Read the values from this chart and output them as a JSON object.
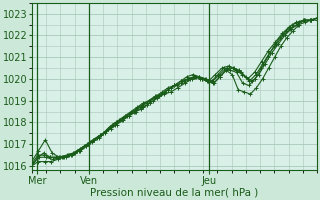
{
  "title": "",
  "xlabel": "Pression niveau de la mer( hPa )",
  "ylabel": "",
  "bg_color": "#cce8d8",
  "plot_bg_color": "#d8f0e8",
  "grid_color": "#a8c8b8",
  "line_color": "#1a5c1a",
  "ylim": [
    1015.8,
    1023.3
  ],
  "xlim": [
    0,
    100
  ],
  "x_ticks": [
    2,
    20,
    62
  ],
  "x_labels": [
    "Mer",
    "Ven",
    "Jeu"
  ],
  "vline_positions": [
    2,
    20,
    62
  ],
  "yticks": [
    1016,
    1017,
    1018,
    1019,
    1020,
    1021,
    1022,
    1023
  ],
  "series": [
    [
      1016.0,
      1016.4,
      1016.6,
      1016.4,
      1016.4,
      1016.4,
      1016.5,
      1016.6,
      1016.7,
      1016.9,
      1017.1,
      1017.3,
      1017.5,
      1017.7,
      1017.9,
      1018.1,
      1018.3,
      1018.5,
      1018.6,
      1018.8,
      1019.0,
      1019.2,
      1019.4,
      1019.6,
      1019.7,
      1019.9,
      1020.0,
      1020.1,
      1020.0,
      1019.9,
      1019.8,
      1020.1,
      1020.4,
      1020.2,
      1019.5,
      1019.4,
      1019.3,
      1019.6,
      1020.0,
      1020.5,
      1021.0,
      1021.5,
      1021.9,
      1022.2,
      1022.5,
      1022.6,
      1022.7,
      1022.7
    ],
    [
      1016.1,
      1016.5,
      1016.5,
      1016.4,
      1016.4,
      1016.4,
      1016.5,
      1016.6,
      1016.8,
      1017.0,
      1017.2,
      1017.4,
      1017.6,
      1017.9,
      1018.1,
      1018.3,
      1018.5,
      1018.7,
      1018.9,
      1019.0,
      1019.2,
      1019.4,
      1019.6,
      1019.7,
      1019.9,
      1020.1,
      1020.2,
      1020.1,
      1020.0,
      1019.9,
      1020.2,
      1020.5,
      1020.4,
      1020.3,
      1019.8,
      1019.7,
      1020.0,
      1020.5,
      1021.0,
      1021.5,
      1021.9,
      1022.2,
      1022.5,
      1022.6,
      1022.7,
      1022.7,
      1022.8
    ],
    [
      1016.0,
      1016.2,
      1016.2,
      1016.2,
      1016.3,
      1016.4,
      1016.5,
      1016.7,
      1016.9,
      1017.1,
      1017.3,
      1017.5,
      1017.8,
      1018.0,
      1018.2,
      1018.4,
      1018.6,
      1018.8,
      1019.0,
      1019.2,
      1019.3,
      1019.5,
      1019.7,
      1019.9,
      1020.0,
      1020.1,
      1020.0,
      1019.9,
      1019.8,
      1020.1,
      1020.4,
      1020.5,
      1020.4,
      1020.1,
      1019.9,
      1020.2,
      1020.7,
      1021.2,
      1021.6,
      1022.0,
      1022.3,
      1022.5,
      1022.7,
      1022.7,
      1022.8
    ],
    [
      1016.2,
      1016.7,
      1017.2,
      1016.6,
      1016.4,
      1016.4,
      1016.5,
      1016.7,
      1016.9,
      1017.2,
      1017.4,
      1017.6,
      1017.9,
      1018.1,
      1018.3,
      1018.5,
      1018.7,
      1018.9,
      1019.1,
      1019.3,
      1019.5,
      1019.7,
      1019.8,
      1020.0,
      1020.1,
      1020.0,
      1019.9,
      1020.2,
      1020.5,
      1020.6,
      1020.4,
      1020.2,
      1019.9,
      1020.2,
      1020.7,
      1021.2,
      1021.6,
      1022.0,
      1022.3,
      1022.5,
      1022.7,
      1022.7,
      1022.8
    ],
    [
      1016.0,
      1016.4,
      1016.4,
      1016.3,
      1016.4,
      1016.5,
      1016.6,
      1016.8,
      1017.0,
      1017.2,
      1017.4,
      1017.7,
      1017.9,
      1018.1,
      1018.3,
      1018.5,
      1018.7,
      1018.9,
      1019.1,
      1019.3,
      1019.4,
      1019.6,
      1019.8,
      1020.0,
      1020.1,
      1020.0,
      1019.9,
      1020.2,
      1020.5,
      1020.5,
      1020.3,
      1020.0,
      1020.3,
      1020.8,
      1021.3,
      1021.7,
      1022.1,
      1022.4,
      1022.6,
      1022.7,
      1022.7,
      1022.8
    ]
  ]
}
